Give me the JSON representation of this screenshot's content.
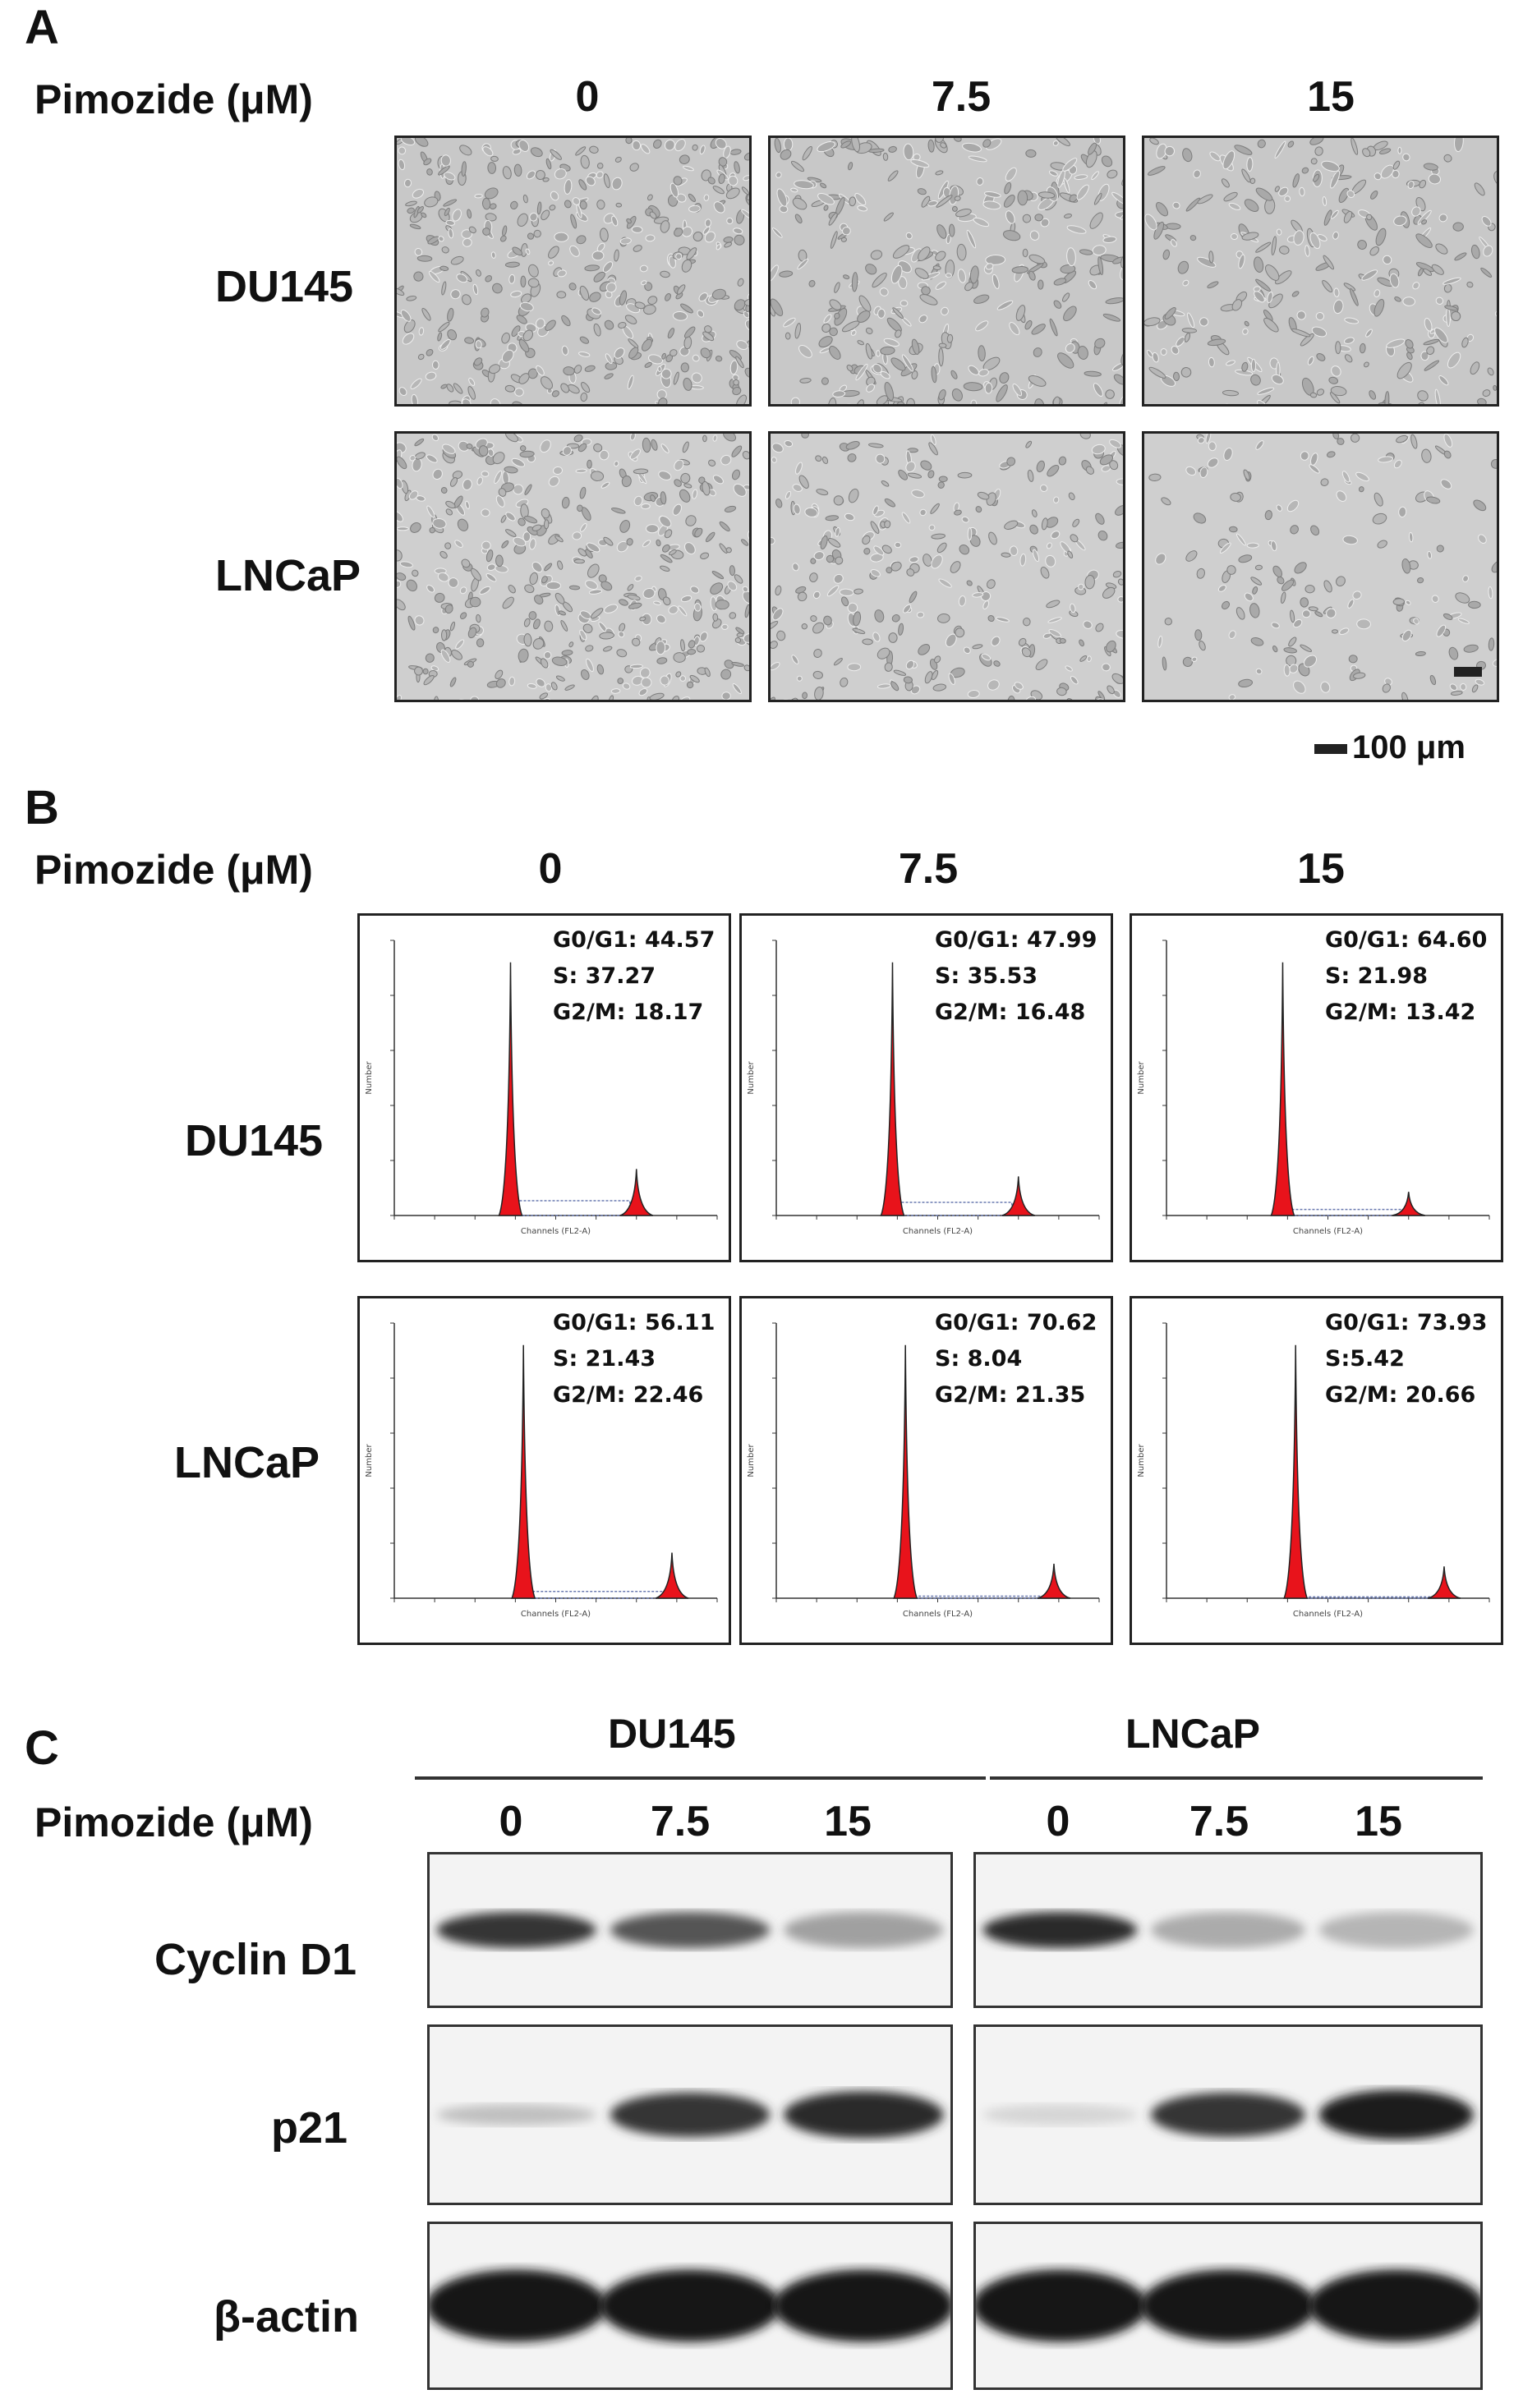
{
  "panel_a": {
    "letter": "A",
    "header": "Pimozide (μM)",
    "concentrations": [
      "0",
      "7.5",
      "15"
    ],
    "rows": [
      "DU145",
      "LNCaP"
    ],
    "scale_bar": "100 μm",
    "cell_density": [
      [
        1.0,
        0.8,
        0.65
      ],
      [
        1.0,
        0.7,
        0.4
      ]
    ]
  },
  "panel_b": {
    "letter": "B",
    "header": "Pimozide (μM)",
    "concentrations": [
      "0",
      "7.5",
      "15"
    ],
    "rows": [
      "DU145",
      "LNCaP"
    ],
    "histograms": [
      [
        {
          "g0g1": "G0/G1: 44.57",
          "s": "S: 37.27",
          "g2m": "G2/M:  18.17",
          "g1": 44.57,
          "sp": 37.27,
          "g2": 18.17
        },
        {
          "g0g1": "G0/G1: 47.99",
          "s": "S: 35.53",
          "g2m": "G2/M:  16.48",
          "g1": 47.99,
          "sp": 35.53,
          "g2": 16.48
        },
        {
          "g0g1": "G0/G1: 64.60",
          "s": "S: 21.98",
          "g2m": "G2/M:  13.42",
          "g1": 64.6,
          "sp": 21.98,
          "g2": 13.42
        }
      ],
      [
        {
          "g0g1": "G0/G1: 56.11",
          "s": "S: 21.43",
          "g2m": "G2/M:  22.46",
          "g1": 56.11,
          "sp": 21.43,
          "g2": 22.46
        },
        {
          "g0g1": "G0/G1: 70.62",
          "s": "S: 8.04",
          "g2m": "G2/M:  21.35",
          "g1": 70.62,
          "sp": 8.04,
          "g2": 21.35
        },
        {
          "g0g1": "G0/G1: 73.93",
          "s": "S:5.42",
          "g2m": "G2/M:  20.66",
          "g1": 73.93,
          "sp": 5.42,
          "g2": 20.66
        }
      ]
    ],
    "axis_label": "Channels (FL2-A)",
    "y_label": "Number",
    "colors": {
      "peak": "#e8131b",
      "s_phase": "#6a7ab0"
    }
  },
  "panel_c": {
    "letter": "C",
    "cell_lines": [
      "DU145",
      "LNCaP"
    ],
    "header": "Pimozide (μM)",
    "concentrations": [
      "0",
      "7.5",
      "15",
      "0",
      "7.5",
      "15"
    ],
    "proteins": [
      "Cyclin D1",
      "p21",
      "β-actin"
    ],
    "band_intensity": {
      "Cyclin D1": [
        [
          0.85,
          0.7,
          0.35
        ],
        [
          0.9,
          0.3,
          0.25
        ]
      ],
      "p21": [
        [
          0.2,
          0.85,
          0.9
        ],
        [
          0.1,
          0.85,
          0.95
        ]
      ],
      "β-actin": [
        [
          1.0,
          1.0,
          1.0
        ],
        [
          1.0,
          1.0,
          1.0
        ]
      ]
    }
  }
}
